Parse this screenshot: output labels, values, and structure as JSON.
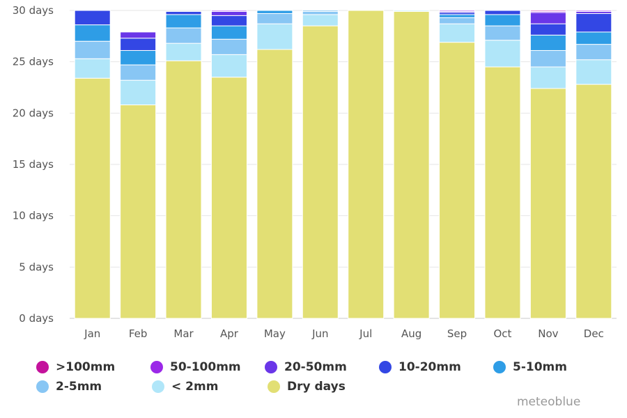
{
  "chart_data": {
    "type": "bar",
    "stacked": true,
    "categories": [
      "Jan",
      "Feb",
      "Mar",
      "Apr",
      "May",
      "Jun",
      "Jul",
      "Aug",
      "Sep",
      "Oct",
      "Nov",
      "Dec"
    ],
    "y_ticks": [
      "0 days",
      "5 days",
      "10 days",
      "15 days",
      "20 days",
      "25 days",
      "30 days"
    ],
    "ylim": [
      0,
      30
    ],
    "grid": true,
    "legend_position": "bottom",
    "series": [
      {
        "name": "Dry days",
        "color": "#e2df74",
        "values": [
          23.4,
          20.8,
          25.1,
          23.5,
          26.2,
          28.5,
          30.0,
          29.9,
          26.9,
          24.5,
          22.4,
          22.8
        ]
      },
      {
        "name": "< 2mm",
        "color": "#b0e6f9",
        "values": [
          1.9,
          2.4,
          1.7,
          2.2,
          2.5,
          1.1,
          0.0,
          0.1,
          1.8,
          2.6,
          2.1,
          2.4
        ]
      },
      {
        "name": "2-5mm",
        "color": "#88c6f4",
        "values": [
          1.7,
          1.5,
          1.5,
          1.5,
          1.0,
          0.3,
          0.0,
          0.0,
          0.6,
          1.4,
          1.6,
          1.5
        ]
      },
      {
        "name": "5-10mm",
        "color": "#2e9de6",
        "values": [
          1.6,
          1.4,
          1.3,
          1.3,
          0.3,
          0.1,
          0.0,
          0.0,
          0.3,
          1.1,
          1.5,
          1.2
        ]
      },
      {
        "name": "10-20mm",
        "color": "#3347e4",
        "values": [
          1.4,
          1.2,
          0.3,
          1.0,
          0.0,
          0.0,
          0.0,
          0.0,
          0.2,
          0.4,
          1.1,
          1.8
        ]
      },
      {
        "name": "20-50mm",
        "color": "#6a36e8",
        "values": [
          0.0,
          0.6,
          0.0,
          0.4,
          0.0,
          0.0,
          0.0,
          0.0,
          0.1,
          0.0,
          1.1,
          0.2
        ]
      },
      {
        "name": "50-100mm",
        "color": "#9b28e8",
        "values": [
          0.0,
          0.0,
          0.0,
          0.1,
          0.0,
          0.0,
          0.0,
          0.0,
          0.1,
          0.0,
          0.1,
          0.1
        ]
      },
      {
        "name": ">100mm",
        "color": "#c4129c",
        "values": [
          0.0,
          0.0,
          0.0,
          0.0,
          0.0,
          0.0,
          0.0,
          0.0,
          0.0,
          0.0,
          0.1,
          0.0
        ]
      }
    ]
  },
  "legend": [
    {
      "label": ">100mm",
      "color": "#c4129c"
    },
    {
      "label": "50-100mm",
      "color": "#9b28e8"
    },
    {
      "label": "20-50mm",
      "color": "#6a36e8"
    },
    {
      "label": "10-20mm",
      "color": "#3347e4"
    },
    {
      "label": "5-10mm",
      "color": "#2e9de6"
    },
    {
      "label": "2-5mm",
      "color": "#88c6f4"
    },
    {
      "label": "< 2mm",
      "color": "#b0e6f9"
    },
    {
      "label": "Dry days",
      "color": "#e2df74"
    }
  ],
  "credit": "meteoblue"
}
